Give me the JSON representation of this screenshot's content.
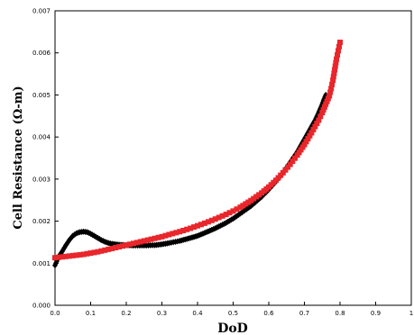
{
  "chart_data": {
    "type": "scatter",
    "title": "",
    "xlabel": "DoD",
    "ylabel": "Cell Resistance (Ω-m)",
    "xlim": [
      0,
      1
    ],
    "ylim": [
      0,
      0.007
    ],
    "x_ticks": [
      "0.0",
      "0.1",
      "0.2",
      "0.3",
      "0.4",
      "0.5",
      "0.6",
      "0.7",
      "0.8",
      "0.9",
      "1"
    ],
    "y_ticks": [
      "0.000",
      "0.001",
      "0.002",
      "0.003",
      "0.004",
      "0.005",
      "0.006",
      "0.007"
    ],
    "grid": false,
    "legend": "none",
    "series": [
      {
        "color": "#000000",
        "marker": "diamond",
        "points": [
          [
            0.0,
            0.00095
          ],
          [
            0.005,
            0.00105
          ],
          [
            0.01,
            0.00115
          ],
          [
            0.02,
            0.00128
          ],
          [
            0.03,
            0.00142
          ],
          [
            0.04,
            0.00155
          ],
          [
            0.05,
            0.00165
          ],
          [
            0.06,
            0.00171
          ],
          [
            0.07,
            0.00174
          ],
          [
            0.08,
            0.00175
          ],
          [
            0.09,
            0.00174
          ],
          [
            0.1,
            0.0017
          ],
          [
            0.11,
            0.00165
          ],
          [
            0.12,
            0.0016
          ],
          [
            0.13,
            0.00155
          ],
          [
            0.14,
            0.00151
          ],
          [
            0.15,
            0.00148
          ],
          [
            0.16,
            0.00146
          ],
          [
            0.18,
            0.00144
          ],
          [
            0.2,
            0.00143
          ],
          [
            0.22,
            0.00142
          ],
          [
            0.25,
            0.00142
          ],
          [
            0.28,
            0.00143
          ],
          [
            0.3,
            0.00145
          ],
          [
            0.32,
            0.00148
          ],
          [
            0.35,
            0.00153
          ],
          [
            0.38,
            0.0016
          ],
          [
            0.4,
            0.00165
          ],
          [
            0.42,
            0.00172
          ],
          [
            0.45,
            0.00183
          ],
          [
            0.48,
            0.00196
          ],
          [
            0.5,
            0.00206
          ],
          [
            0.52,
            0.00218
          ],
          [
            0.55,
            0.00236
          ],
          [
            0.58,
            0.00258
          ],
          [
            0.6,
            0.00275
          ],
          [
            0.62,
            0.00294
          ],
          [
            0.64,
            0.00315
          ],
          [
            0.66,
            0.0034
          ],
          [
            0.68,
            0.00365
          ],
          [
            0.7,
            0.00395
          ],
          [
            0.72,
            0.00425
          ],
          [
            0.73,
            0.0044
          ],
          [
            0.74,
            0.00458
          ],
          [
            0.75,
            0.00478
          ],
          [
            0.755,
            0.0049
          ],
          [
            0.76,
            0.005
          ]
        ]
      },
      {
        "color": "#e8262b",
        "marker": "square",
        "points": [
          [
            0.0,
            0.00113
          ],
          [
            0.02,
            0.00115
          ],
          [
            0.05,
            0.00118
          ],
          [
            0.08,
            0.00121
          ],
          [
            0.1,
            0.00124
          ],
          [
            0.12,
            0.00127
          ],
          [
            0.15,
            0.00133
          ],
          [
            0.18,
            0.00139
          ],
          [
            0.2,
            0.00143
          ],
          [
            0.22,
            0.00147
          ],
          [
            0.25,
            0.00153
          ],
          [
            0.28,
            0.00159
          ],
          [
            0.3,
            0.00163
          ],
          [
            0.32,
            0.00168
          ],
          [
            0.35,
            0.00175
          ],
          [
            0.38,
            0.00183
          ],
          [
            0.4,
            0.00189
          ],
          [
            0.42,
            0.00195
          ],
          [
            0.45,
            0.00205
          ],
          [
            0.48,
            0.00216
          ],
          [
            0.5,
            0.00224
          ],
          [
            0.52,
            0.00233
          ],
          [
            0.55,
            0.00249
          ],
          [
            0.58,
            0.00267
          ],
          [
            0.6,
            0.00281
          ],
          [
            0.62,
            0.00297
          ],
          [
            0.64,
            0.00315
          ],
          [
            0.66,
            0.00335
          ],
          [
            0.68,
            0.00357
          ],
          [
            0.7,
            0.00382
          ],
          [
            0.72,
            0.0041
          ],
          [
            0.73,
            0.00425
          ],
          [
            0.74,
            0.0044
          ],
          [
            0.75,
            0.00458
          ],
          [
            0.76,
            0.00478
          ],
          [
            0.77,
            0.00498
          ],
          [
            0.775,
            0.00515
          ],
          [
            0.78,
            0.00535
          ],
          [
            0.785,
            0.0056
          ],
          [
            0.79,
            0.00585
          ],
          [
            0.795,
            0.00605
          ],
          [
            0.8,
            0.00625
          ]
        ]
      }
    ]
  }
}
